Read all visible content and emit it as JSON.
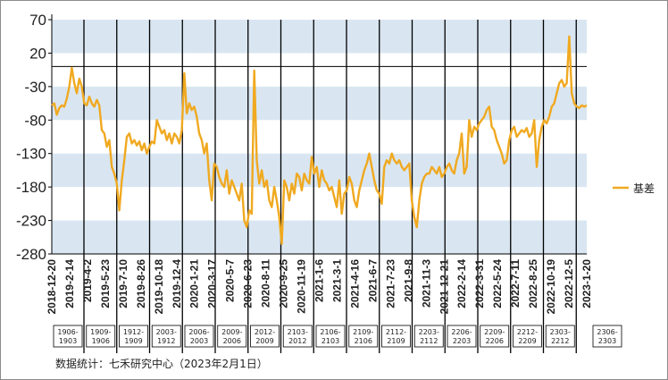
{
  "chart_data": {
    "type": "line",
    "title": "",
    "xlabel": "",
    "ylabel": "",
    "ylim": [
      -280,
      70
    ],
    "yticks": [
      70,
      20,
      -30,
      -80,
      -130,
      -180,
      -230,
      -280
    ],
    "reference_line": 0,
    "band_color": "#d9e6f2",
    "line_color": "#f0a920",
    "grid": "alternating horizontal bands",
    "legend_position": "right",
    "x_tick_labels": [
      "2018-12-20",
      "2019-2-14",
      "2019-4-2",
      "2019-5-23",
      "2019-7-10",
      "2019-8-26",
      "2019-10-18",
      "2019-12-4",
      "2020-1-21",
      "2020-3-17",
      "2020-5-7",
      "2020-6-23",
      "2020-8-11",
      "2020-9-25",
      "2020-11-19",
      "2021-1-6",
      "2021-3-1",
      "2021-4-16",
      "2021-6-7",
      "2021-7-23",
      "2021-9-8",
      "2021-11-3",
      "2021-12-21",
      "2022-2-14",
      "2022-3-31",
      "2022-5-24",
      "2022-7-11",
      "2022-8-25",
      "2022-10-19",
      "2022-12-5",
      "2023-1-20"
    ],
    "contract_switches": [
      "1906-1903",
      "1909-1906",
      "1912-1909",
      "2003-1912",
      "2006-2003",
      "2009-2006",
      "2012-2009",
      "2103-2012",
      "2106-2103",
      "2109-2106",
      "2112-2109",
      "2203-2112",
      "2206-2203",
      "2209-2206",
      "2212-2209",
      "2303-2212",
      "2306-2303"
    ],
    "series": [
      {
        "name": "基差",
        "values": [
          -58,
          -55,
          -72,
          -62,
          -58,
          -60,
          -48,
          -30,
          -2,
          -25,
          -40,
          -18,
          -30,
          -55,
          -58,
          -45,
          -55,
          -60,
          -50,
          -58,
          -95,
          -100,
          -120,
          -110,
          -150,
          -160,
          -175,
          -215,
          -170,
          -140,
          -105,
          -100,
          -115,
          -110,
          -118,
          -112,
          -125,
          -115,
          -130,
          -120,
          -112,
          -115,
          -80,
          -90,
          -100,
          -95,
          -110,
          -100,
          -115,
          -100,
          -105,
          -115,
          -95,
          -10,
          -70,
          -55,
          -65,
          -60,
          -75,
          -100,
          -110,
          -130,
          -115,
          -170,
          -200,
          -145,
          -150,
          -165,
          -175,
          -180,
          -155,
          -190,
          -170,
          -180,
          -190,
          -200,
          -175,
          -230,
          -240,
          -215,
          -220,
          -6,
          -140,
          -175,
          -155,
          -180,
          -170,
          -200,
          -210,
          -180,
          -200,
          -225,
          -265,
          -170,
          -180,
          -200,
          -175,
          -190,
          -160,
          -165,
          -185,
          -160,
          -170,
          -175,
          -135,
          -160,
          -150,
          -180,
          -155,
          -170,
          -175,
          -185,
          -180,
          -195,
          -210,
          -170,
          -220,
          -190,
          -185,
          -165,
          -175,
          -200,
          -210,
          -185,
          -170,
          -155,
          -145,
          -130,
          -150,
          -170,
          -185,
          -190,
          -205,
          -150,
          -140,
          -145,
          -130,
          -140,
          -145,
          -140,
          -150,
          -155,
          -150,
          -145,
          -200,
          -225,
          -240,
          -200,
          -175,
          -165,
          -160,
          -160,
          -150,
          -155,
          -160,
          -150,
          -165,
          -160,
          -150,
          -145,
          -155,
          -160,
          -140,
          -130,
          -100,
          -160,
          -150,
          -80,
          -105,
          -90,
          -95,
          -85,
          -80,
          -75,
          -65,
          -60,
          -90,
          -95,
          -110,
          -120,
          -130,
          -145,
          -140,
          -110,
          -95,
          -90,
          -105,
          -100,
          -95,
          -98,
          -92,
          -105,
          -100,
          -80,
          -150,
          -110,
          -90,
          -80,
          -85,
          -75,
          -60,
          -55,
          -40,
          -25,
          -20,
          -30,
          -25,
          45,
          -40,
          -55,
          -60,
          -62,
          -58,
          -60,
          -58
        ]
      }
    ]
  },
  "legend": {
    "label": "基差"
  },
  "source_note": "数据统计：七禾研究中心（2023年2月1日）"
}
